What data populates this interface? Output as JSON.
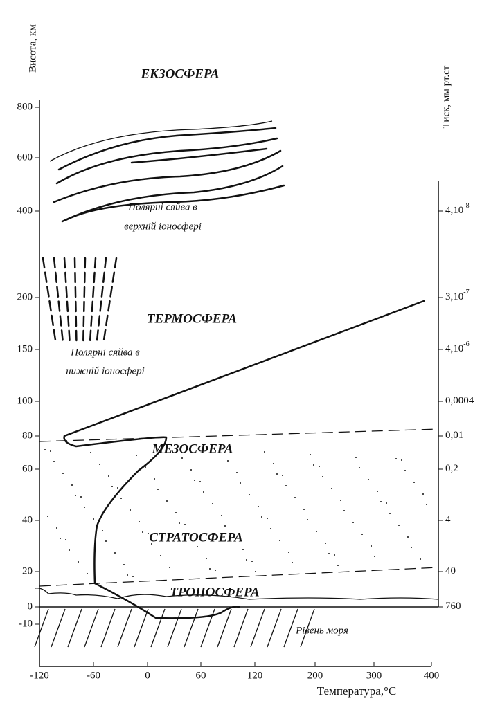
{
  "y_axis": {
    "label": "Висота, км",
    "ticks": [
      "800",
      "600",
      "400",
      "200",
      "150",
      "100",
      "80",
      "60",
      "40",
      "20",
      "0",
      "-10"
    ]
  },
  "y2_axis": {
    "label": "Тиск, мм рт.ст",
    "ticks": [
      {
        "text": "4,10",
        "sup": "-8"
      },
      {
        "text": "3,10",
        "sup": "-7"
      },
      {
        "text": "4,10",
        "sup": "-6"
      },
      {
        "text": "0,0004"
      },
      {
        "text": "0,01"
      },
      {
        "text": "0,2"
      },
      {
        "text": "4"
      },
      {
        "text": "40"
      },
      {
        "text": "760"
      }
    ]
  },
  "x_axis": {
    "label": "Температура,°С",
    "ticks": [
      "-120",
      "-60",
      "0",
      "60",
      "120",
      "200",
      "300",
      "400"
    ]
  },
  "layers": [
    "ЕКЗОСФЕРА",
    "ТЕРМОСФЕРА",
    "МЕЗОСФЕРА",
    "СТРАТОСФЕРА",
    "ТРОПОСФЕРА"
  ],
  "annotations": [
    "Полярні сяйва в",
    "верхній іоносфері",
    "Полярні сяйва в",
    "нижній іоносфері",
    "Рівень моря"
  ]
}
